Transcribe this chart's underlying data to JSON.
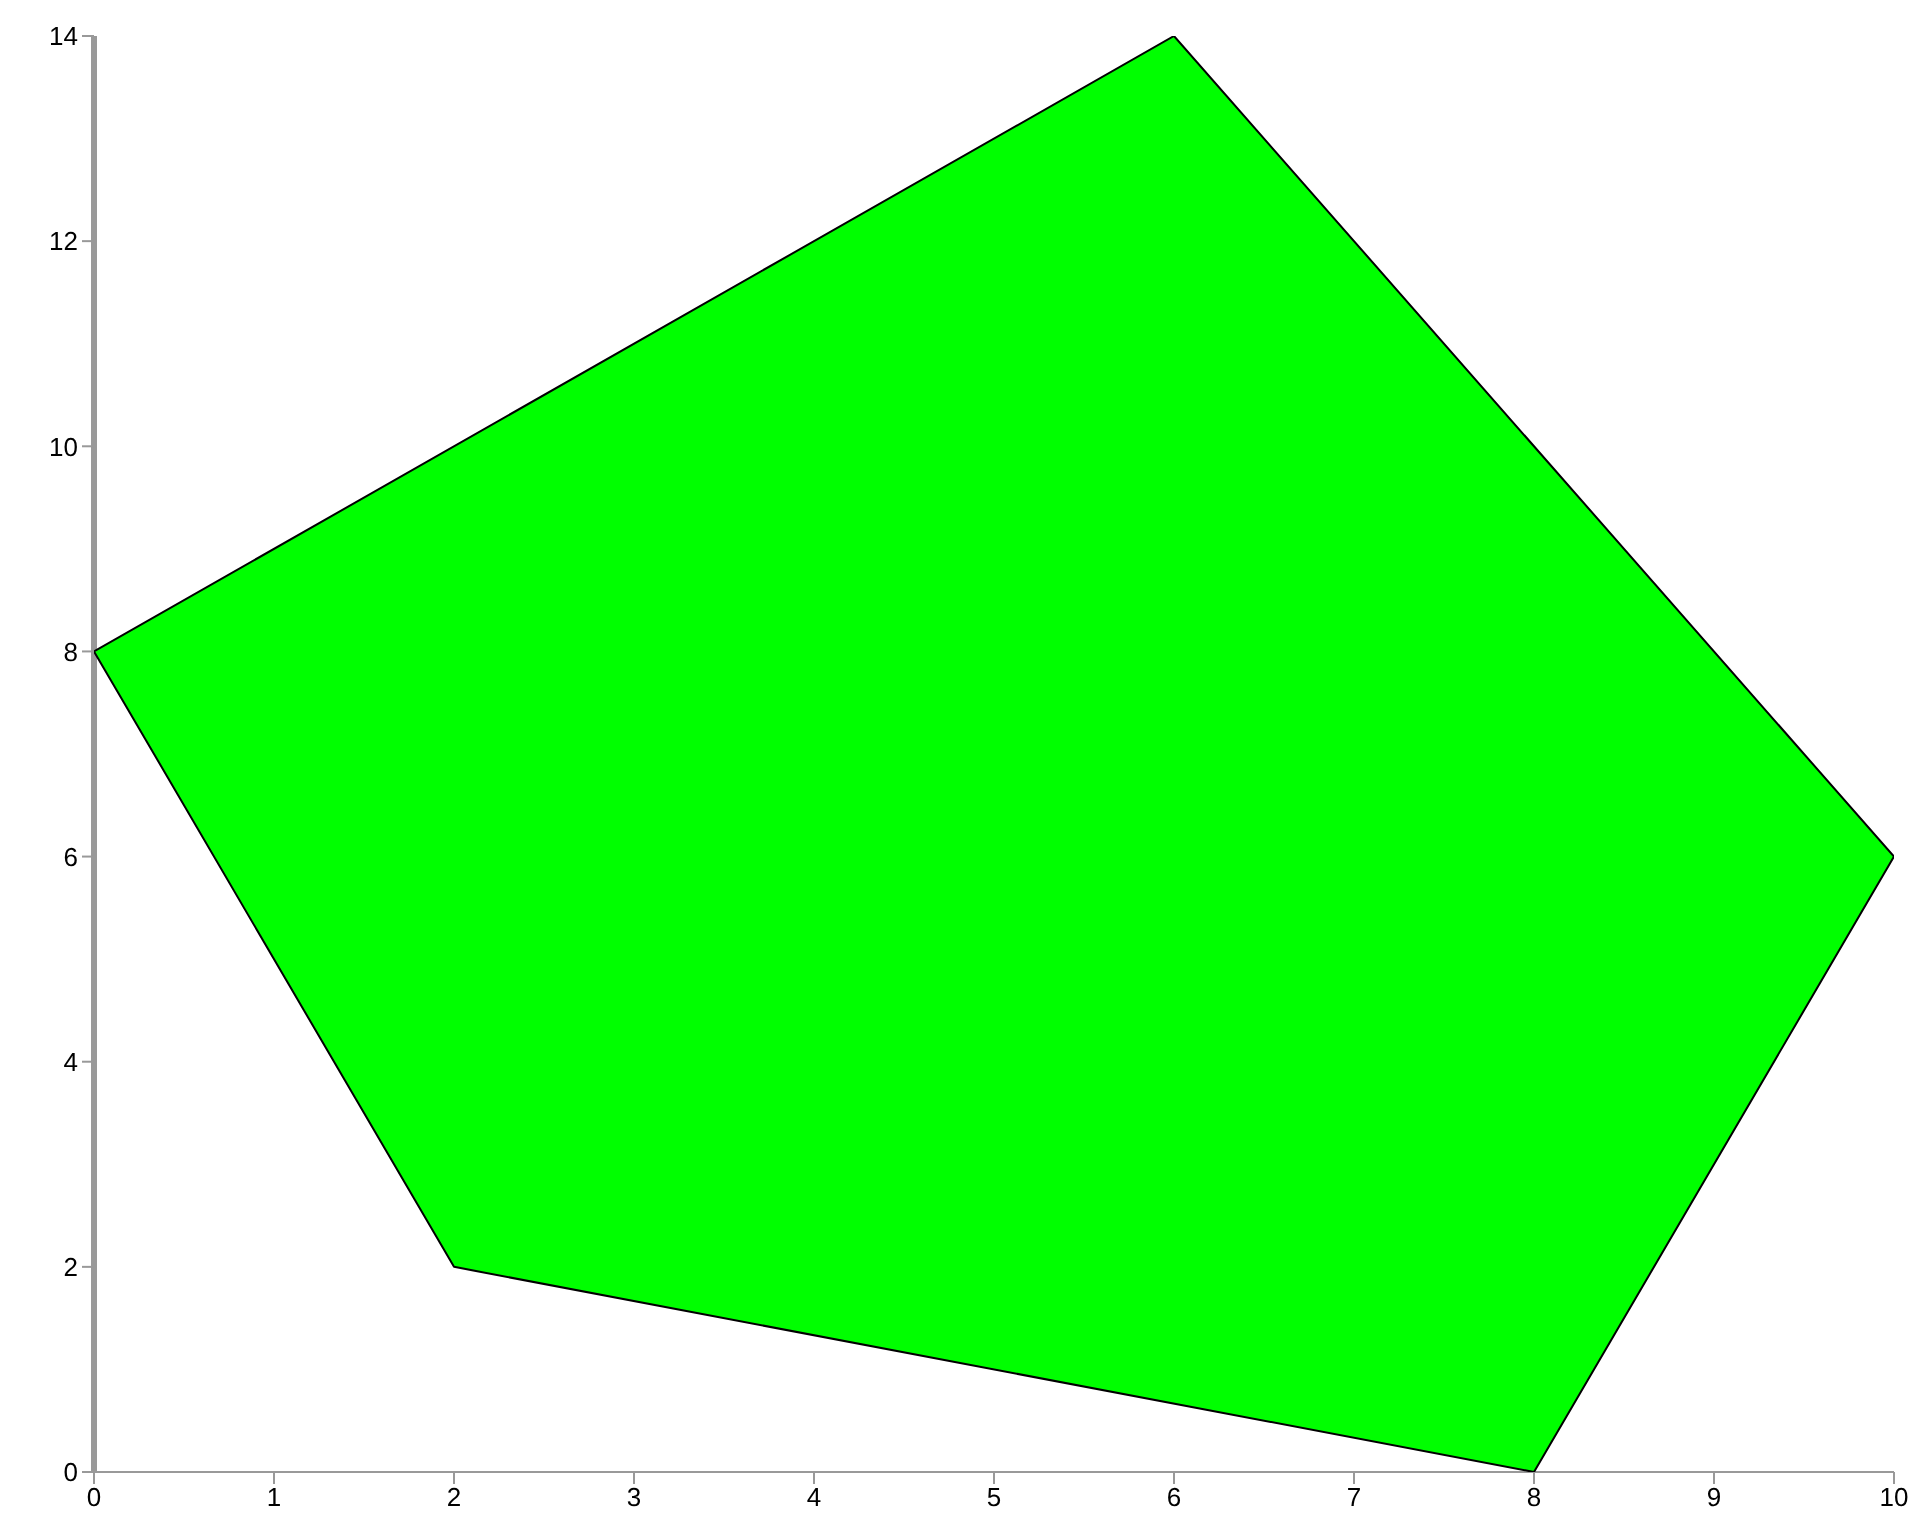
{
  "chart_data": {
    "type": "area",
    "x": [
      0,
      6,
      10,
      8,
      2,
      0
    ],
    "series": [
      {
        "color": "#00ff00",
        "values": [
          8,
          14,
          6,
          0,
          2,
          8
        ]
      }
    ],
    "xlim": [
      0,
      10
    ],
    "xticks": [
      0,
      1,
      2,
      3,
      4,
      5,
      6,
      7,
      8,
      9,
      10
    ],
    "ylim": [
      0,
      14
    ],
    "yticks": [
      0,
      2,
      4,
      6,
      8,
      10,
      12,
      14
    ],
    "marker": "none"
  }
}
